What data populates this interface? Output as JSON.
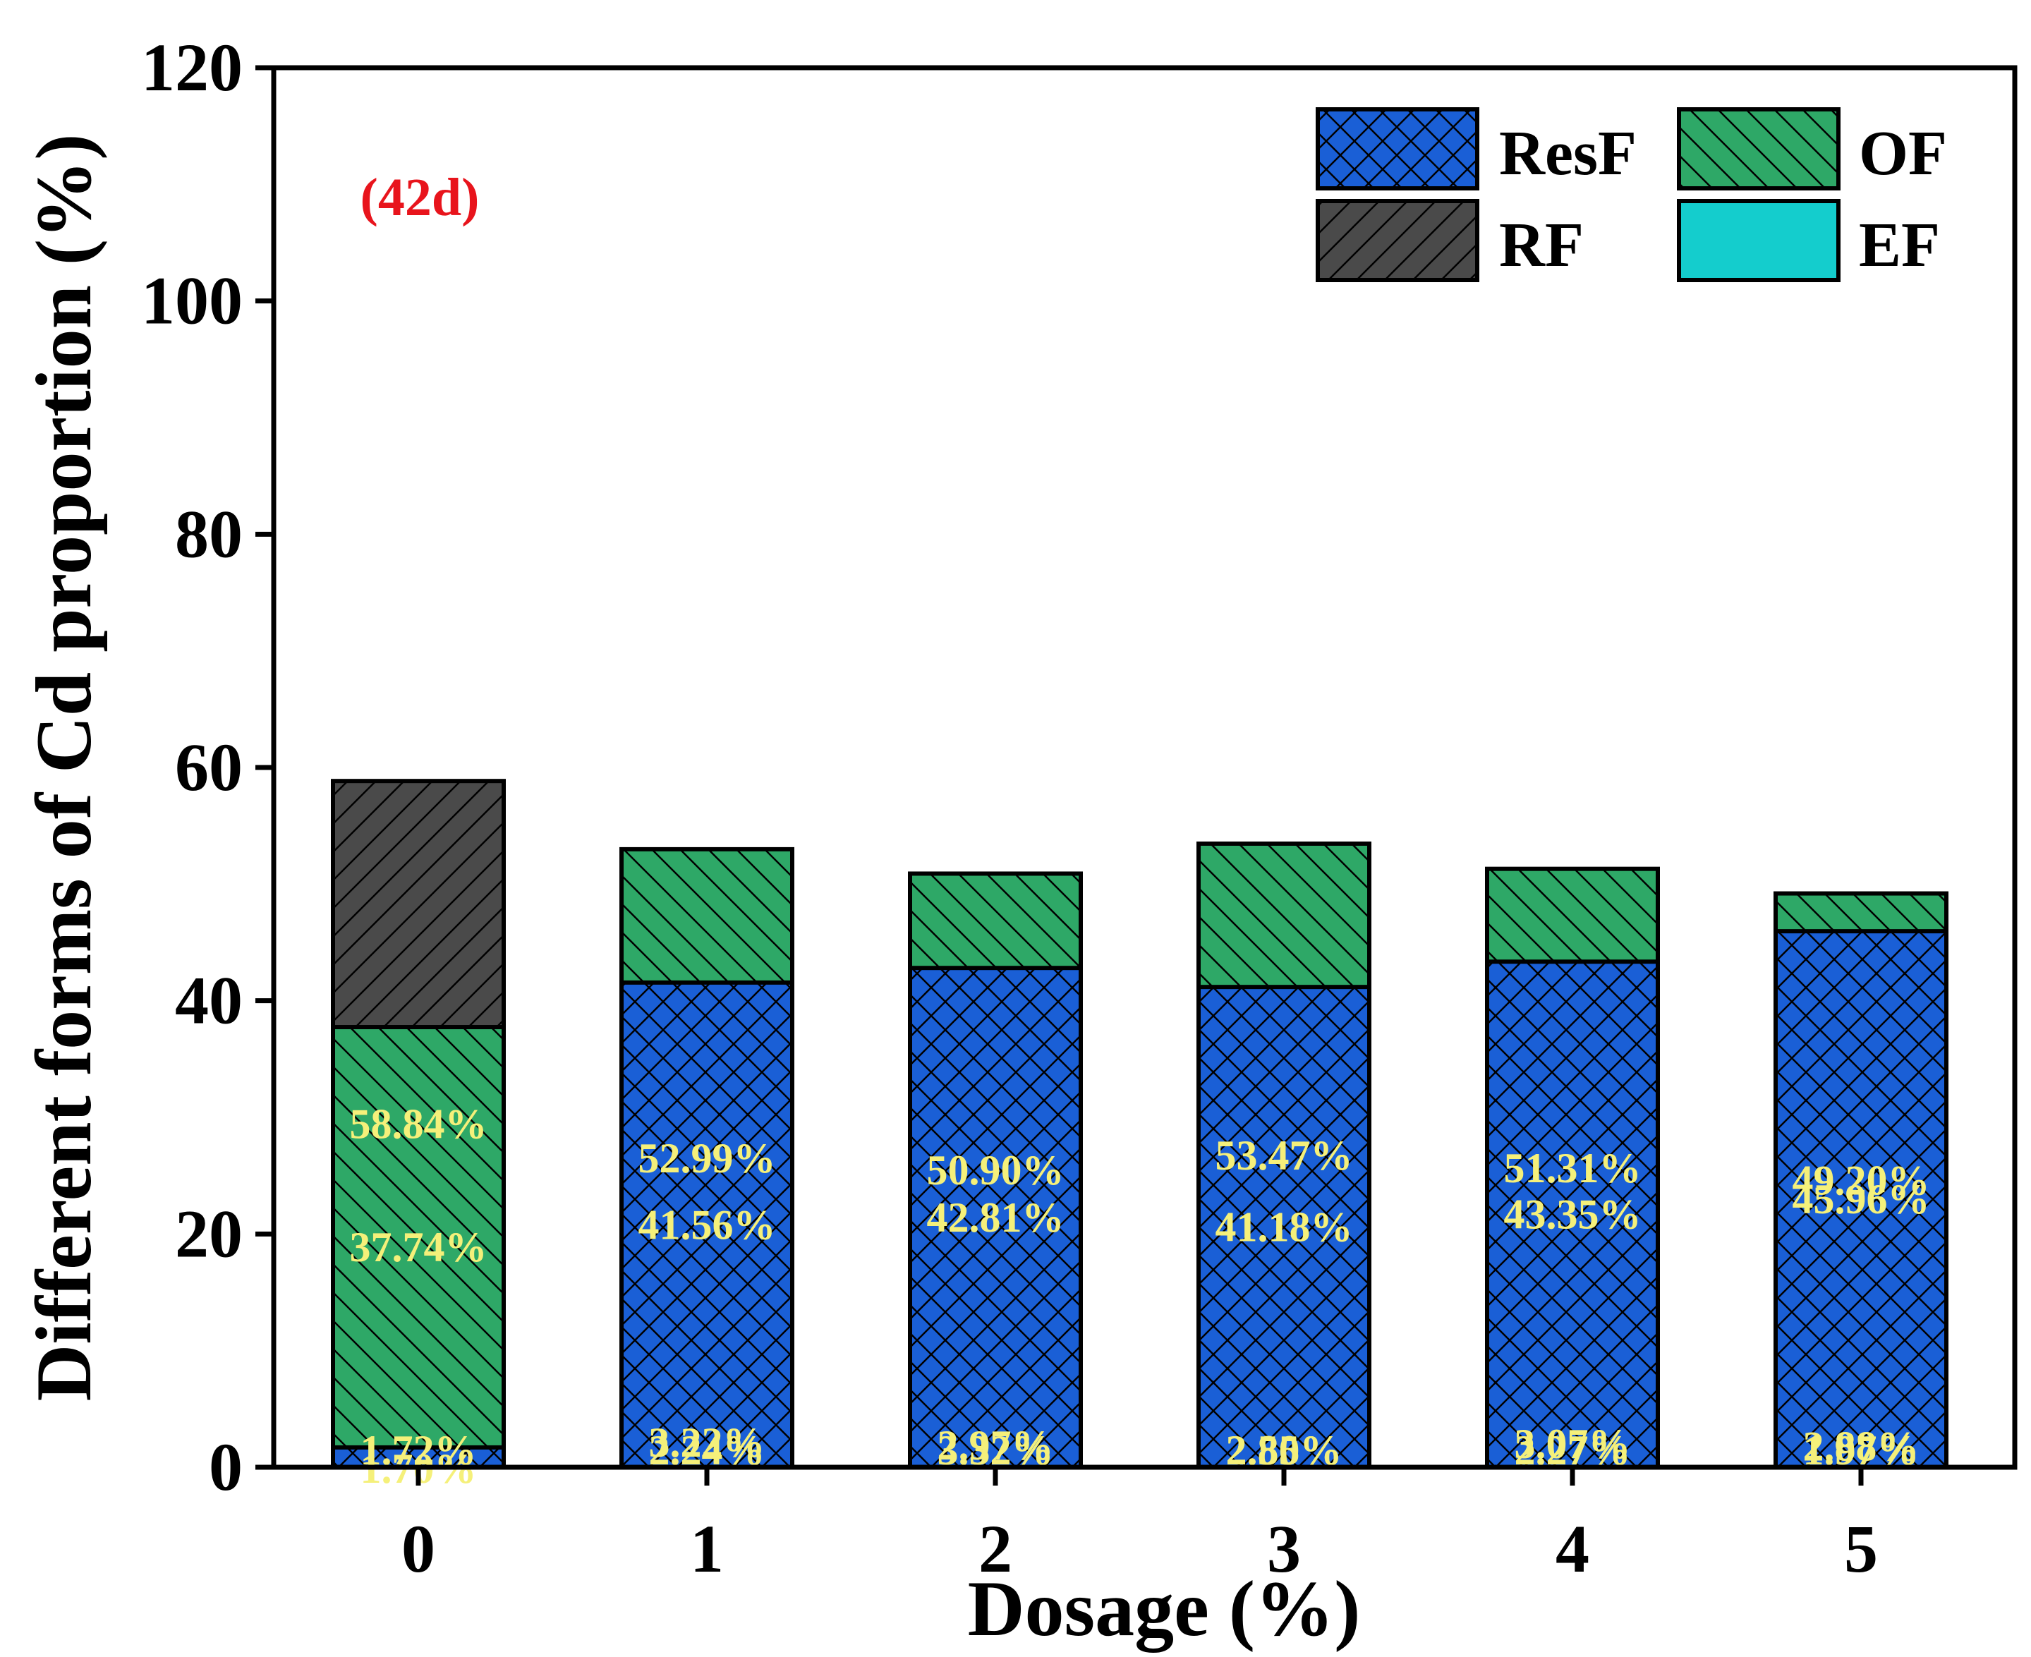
{
  "chart_data": {
    "type": "bar",
    "stacked": true,
    "title": "",
    "annotation": "(42d)",
    "xlabel": "Dosage (%)",
    "ylabel": "Different forms of Cd proportion (%)",
    "categories": [
      "0",
      "1",
      "2",
      "3",
      "4",
      "5"
    ],
    "ylim": [
      0,
      120
    ],
    "yticks": [
      "0",
      "20",
      "40",
      "60",
      "80",
      "100",
      "120"
    ],
    "grid": false,
    "legend_position": "top-right",
    "series": [
      {
        "name": "EF",
        "color": "#14cdcd",
        "pattern": "none",
        "values": [
          1.72,
          2.24,
          3.32,
          2.8,
          2.27,
          1.97
        ],
        "labels": [
          "1.72%",
          "2.24%",
          "3.32%",
          "2.80%",
          "2.27%",
          "1.97%"
        ]
      },
      {
        "name": "RF",
        "color": "#4a4a4a",
        "pattern": "forward-hatch",
        "values": [
          58.84,
          3.22,
          2.97,
          2.55,
          3.07,
          2.88
        ],
        "labels": [
          "58.84%",
          "3.22%",
          "2.97%",
          "2.55%",
          "3.07%",
          "2.88%"
        ]
      },
      {
        "name": "OF",
        "color": "#2ea867",
        "pattern": "back-hatch",
        "values": [
          37.74,
          52.99,
          50.9,
          53.47,
          51.31,
          49.2
        ],
        "labels": [
          "37.74%",
          "52.99%",
          "50.90%",
          "53.47%",
          "51.31%",
          "49.20%"
        ]
      },
      {
        "name": "ResF",
        "color": "#1a5fd6",
        "pattern": "crosshatch",
        "values": [
          1.7,
          41.56,
          42.81,
          41.18,
          43.35,
          45.96
        ],
        "labels": [
          "1.70%",
          "41.56%",
          "42.81%",
          "41.18%",
          "43.35%",
          "45.96%"
        ]
      }
    ],
    "legend_order": [
      "ResF",
      "OF",
      "RF",
      "EF"
    ],
    "label_color": "#f5f07a",
    "annotation_color": "#e8141c"
  }
}
